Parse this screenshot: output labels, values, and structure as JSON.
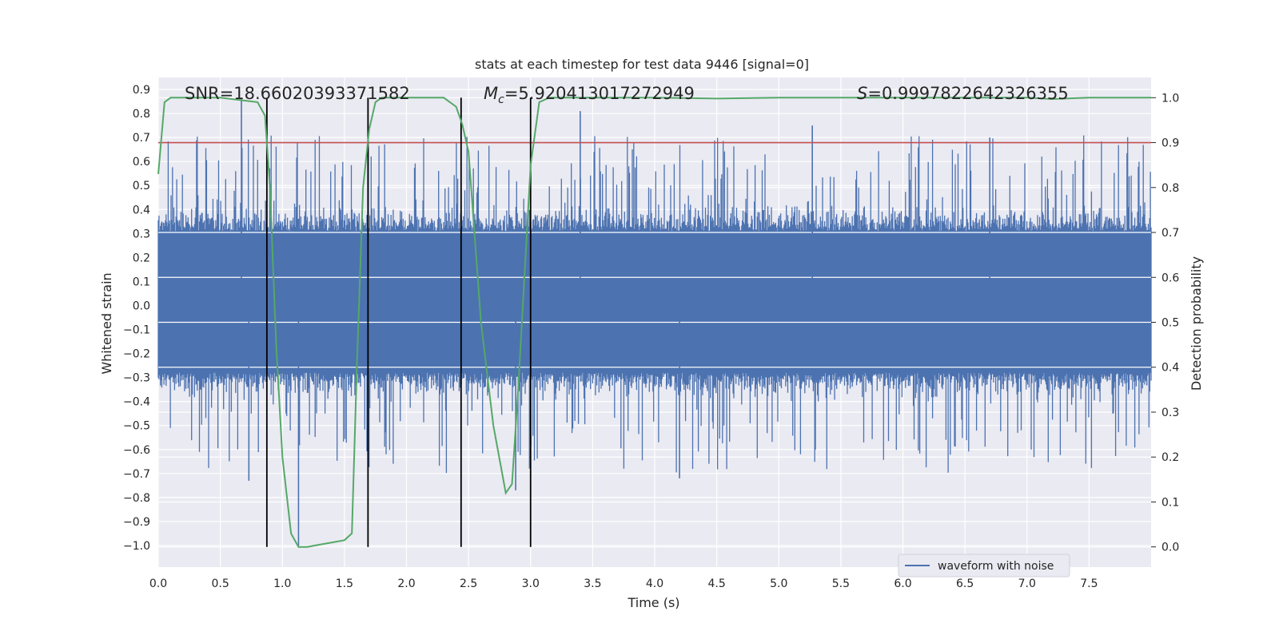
{
  "chart_data": {
    "type": "line",
    "title": "stats at each timestep for test data 9446 [signal=0]",
    "xlabel": "Time (s)",
    "ylabel": "Whitened strain",
    "y2label": "Detection probability",
    "xlim": [
      0.0,
      8.0
    ],
    "ylim": [
      -1.09,
      0.95
    ],
    "y2lim": [
      -0.045,
      1.045
    ],
    "xticks": [
      "0.0",
      "0.5",
      "1.0",
      "1.5",
      "2.0",
      "2.5",
      "3.0",
      "3.5",
      "4.0",
      "4.5",
      "5.0",
      "5.5",
      "6.0",
      "6.5",
      "7.0",
      "7.5"
    ],
    "xtick_values": [
      0.0,
      0.5,
      1.0,
      1.5,
      2.0,
      2.5,
      3.0,
      3.5,
      4.0,
      4.5,
      5.0,
      5.5,
      6.0,
      6.5,
      7.0,
      7.5
    ],
    "yticks": [
      "0.9",
      "0.8",
      "0.7",
      "0.6",
      "0.5",
      "0.4",
      "0.3",
      "0.2",
      "0.1",
      "0.0",
      "−0.1",
      "−0.2",
      "−0.3",
      "−0.4",
      "−0.5",
      "−0.6",
      "−0.7",
      "−0.8",
      "−0.9",
      "−1.0"
    ],
    "ytick_values": [
      0.9,
      0.8,
      0.7,
      0.6,
      0.5,
      0.4,
      0.3,
      0.2,
      0.1,
      0.0,
      -0.1,
      -0.2,
      -0.3,
      -0.4,
      -0.5,
      -0.6,
      -0.7,
      -0.8,
      -0.9,
      -1.0
    ],
    "y2ticks": [
      "1.0",
      "0.9",
      "0.8",
      "0.7",
      "0.6",
      "0.5",
      "0.4",
      "0.3",
      "0.2",
      "0.1",
      "0.0"
    ],
    "y2tick_values": [
      1.0,
      0.9,
      0.8,
      0.7,
      0.6,
      0.5,
      0.4,
      0.3,
      0.2,
      0.1,
      0.0
    ],
    "annotations": {
      "snr": "SNR=18.66020393371582",
      "mc": "M_c=5.920413017272949",
      "mc_prefix": "M",
      "mc_sub": "c",
      "mc_value": "=5.920413017272949",
      "s": "S=0.9997822642326355",
      "s_prefix": "S",
      "s_value": "=0.9997822642326355"
    },
    "threshold": 0.9,
    "vertical_lines": [
      0.875,
      1.69,
      2.44,
      3.0
    ],
    "series": [
      {
        "name": "waveform with noise",
        "color": "#4c72b0",
        "kind": "noise",
        "typical_range": [
          -0.28,
          0.31
        ],
        "envelope": [
          -0.45,
          0.55
        ],
        "notable_peaks": [
          {
            "x": 0.67,
            "y": 0.86
          },
          {
            "x": 3.4,
            "y": 0.81
          },
          {
            "x": 1.13,
            "y": -1.0
          },
          {
            "x": 2.88,
            "y": -0.77
          },
          {
            "x": 0.73,
            "y": -0.73
          },
          {
            "x": 4.2,
            "y": -0.72
          },
          {
            "x": 6.7,
            "y": 0.7
          },
          {
            "x": 5.27,
            "y": 0.75
          }
        ]
      },
      {
        "name": "detection probability",
        "color": "#55a868",
        "axis": "right",
        "x": [
          0.0,
          0.05,
          0.1,
          0.2,
          0.5,
          0.8,
          0.86,
          0.9,
          0.95,
          1.0,
          1.07,
          1.13,
          1.2,
          1.3,
          1.4,
          1.5,
          1.56,
          1.6,
          1.65,
          1.7,
          1.75,
          1.8,
          1.85,
          2.0,
          2.3,
          2.4,
          2.45,
          2.5,
          2.6,
          2.7,
          2.8,
          2.85,
          2.9,
          2.95,
          3.0,
          3.07,
          3.15,
          3.3,
          4.0,
          4.5,
          5.0,
          6.0,
          7.0,
          7.2,
          7.5,
          8.0
        ],
        "values": [
          0.83,
          0.99,
          1.0,
          1.0,
          1.0,
          0.99,
          0.96,
          0.8,
          0.45,
          0.2,
          0.03,
          0.0,
          0.0,
          0.005,
          0.01,
          0.015,
          0.03,
          0.4,
          0.8,
          0.93,
          0.99,
          1.0,
          1.0,
          1.0,
          1.0,
          0.98,
          0.94,
          0.88,
          0.5,
          0.27,
          0.12,
          0.14,
          0.35,
          0.6,
          0.85,
          0.99,
          1.0,
          1.0,
          1.0,
          0.998,
          1.0,
          1.0,
          1.0,
          0.997,
          1.0,
          1.0
        ]
      }
    ],
    "legend": {
      "label": "waveform with noise",
      "placement": "lower-right"
    }
  }
}
